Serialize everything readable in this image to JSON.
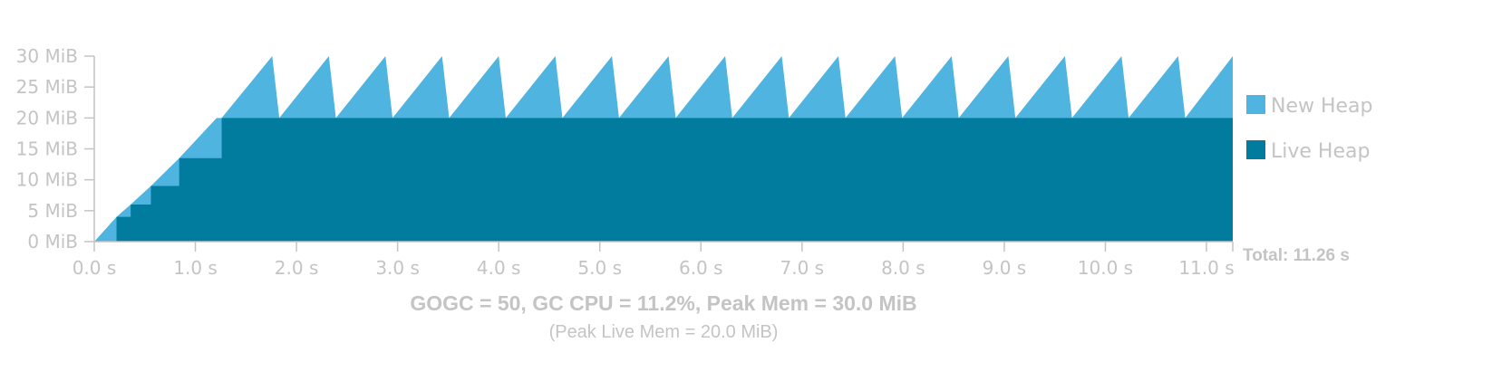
{
  "chart_data": {
    "type": "area",
    "title": "GOGC = 50, GC CPU = 11.2%, Peak Mem = 30.0 MiB",
    "subtitle": "(Peak Live Mem = 20.0 MiB)",
    "total_label": "Total: 11.26 s",
    "xlim": [
      0,
      11.26
    ],
    "ylim": [
      0,
      30
    ],
    "x_ticks": [
      0,
      1,
      2,
      3,
      4,
      5,
      6,
      7,
      8,
      9,
      10,
      11
    ],
    "x_tick_labels": [
      "0.0 s",
      "1.0 s",
      "2.0 s",
      "3.0 s",
      "4.0 s",
      "5.0 s",
      "6.0 s",
      "7.0 s",
      "8.0 s",
      "9.0 s",
      "10.0 s",
      "11.0 s"
    ],
    "y_ticks": [
      0,
      5,
      10,
      15,
      20,
      25,
      30
    ],
    "y_tick_labels": [
      "0 MiB",
      "5 MiB",
      "10 MiB",
      "15 MiB",
      "20 MiB",
      "25 MiB",
      "30 MiB"
    ],
    "legend_position": "right",
    "series": [
      {
        "name": "New Heap",
        "color": "#4fb4df",
        "points": [
          [
            0,
            0
          ],
          [
            0.22,
            4
          ],
          [
            0.22,
            4
          ],
          [
            0.36,
            6
          ],
          [
            0.56,
            9
          ],
          [
            0.84,
            13.5
          ],
          [
            1.21,
            20
          ],
          [
            1.26,
            20
          ],
          [
            1.76,
            30
          ],
          [
            1.83,
            20
          ],
          [
            2.32,
            30
          ],
          [
            2.39,
            20
          ],
          [
            2.88,
            30
          ],
          [
            2.95,
            20
          ],
          [
            3.44,
            30
          ],
          [
            3.51,
            20
          ],
          [
            4.0,
            30
          ],
          [
            4.07,
            20
          ],
          [
            4.56,
            30
          ],
          [
            4.63,
            20
          ],
          [
            5.12,
            30
          ],
          [
            5.19,
            20
          ],
          [
            5.68,
            30
          ],
          [
            5.75,
            20
          ],
          [
            6.24,
            30
          ],
          [
            6.31,
            20
          ],
          [
            6.8,
            30
          ],
          [
            6.87,
            20
          ],
          [
            7.36,
            30
          ],
          [
            7.43,
            20
          ],
          [
            7.92,
            30
          ],
          [
            7.99,
            20
          ],
          [
            8.48,
            30
          ],
          [
            8.55,
            20
          ],
          [
            9.04,
            30
          ],
          [
            9.11,
            20
          ],
          [
            9.6,
            30
          ],
          [
            9.67,
            20
          ],
          [
            10.16,
            30
          ],
          [
            10.23,
            20
          ],
          [
            10.72,
            30
          ],
          [
            10.79,
            20
          ],
          [
            11.26,
            30
          ],
          [
            11.26,
            0
          ]
        ]
      },
      {
        "name": "Live Heap",
        "color": "#017c9f",
        "points": [
          [
            0.22,
            0
          ],
          [
            0.22,
            4
          ],
          [
            0.36,
            4
          ],
          [
            0.36,
            6
          ],
          [
            0.56,
            6
          ],
          [
            0.56,
            9
          ],
          [
            0.84,
            9
          ],
          [
            0.84,
            13.5
          ],
          [
            1.26,
            13.5
          ],
          [
            1.26,
            20
          ],
          [
            11.26,
            20
          ],
          [
            11.26,
            0
          ]
        ]
      }
    ]
  }
}
